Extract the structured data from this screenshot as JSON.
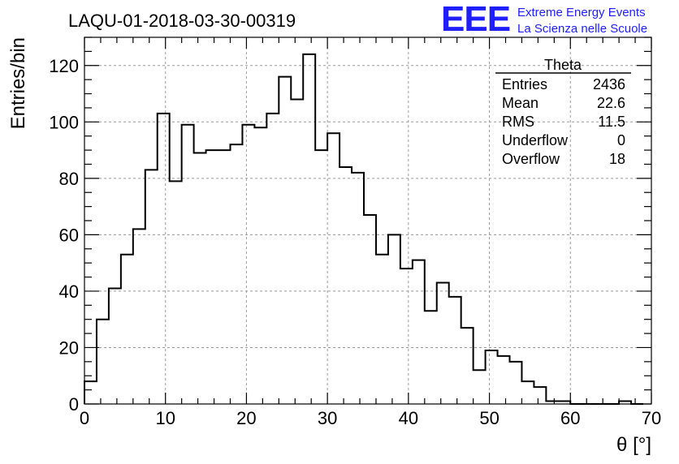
{
  "title": "LAQU-01-2018-03-30-00319",
  "logo": {
    "mark": "EEE",
    "line1": "Extreme Energy Events",
    "line2": "La Scienza nelle Scuole",
    "color": "#1e1eff"
  },
  "stats": {
    "name": "Theta",
    "rows": [
      {
        "label": "Entries",
        "value": "2436"
      },
      {
        "label": "Mean",
        "value": "22.6"
      },
      {
        "label": "RMS",
        "value": "11.5"
      },
      {
        "label": "Underflow",
        "value": "0"
      },
      {
        "label": "Overflow",
        "value": "18"
      }
    ]
  },
  "chart_data": {
    "type": "bar",
    "style": "step-histogram",
    "xlabel": "θ [°]",
    "ylabel": "Entries/bin",
    "xlim": [
      0,
      70
    ],
    "ylim": [
      0,
      130
    ],
    "x_ticks": [
      0,
      10,
      20,
      30,
      40,
      50,
      60,
      70
    ],
    "y_ticks": [
      0,
      20,
      40,
      60,
      80,
      100,
      120
    ],
    "grid": true,
    "bin_width": 1.5,
    "bin_start": 0,
    "values": [
      8,
      30,
      41,
      53,
      62,
      83,
      103,
      79,
      99,
      89,
      90,
      90,
      92,
      99,
      98,
      103,
      116,
      108,
      124,
      90,
      96,
      84,
      82,
      67,
      53,
      60,
      48,
      51,
      33,
      43,
      38,
      27,
      12,
      19,
      17,
      15,
      8,
      6,
      1,
      1,
      0,
      0,
      0,
      0,
      1,
      0
    ]
  }
}
